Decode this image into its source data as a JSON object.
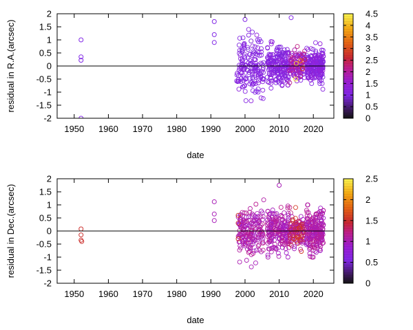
{
  "chart_data": [
    {
      "type": "scatter",
      "xlabel": "date",
      "ylabel": "residual in R.A.(arcsec)",
      "xlim": [
        1945,
        2026
      ],
      "ylim": [
        -2,
        2
      ],
      "xticks": [
        "1950",
        "1960",
        "1970",
        "1980",
        "1990",
        "2000",
        "2010",
        "2020"
      ],
      "yticks": [
        "-2",
        "-1.5",
        "-1",
        "-0.5",
        "0",
        "0.5",
        "1",
        "1.5",
        "2"
      ],
      "zero_line": true,
      "grid": false,
      "colorbar": {
        "range": [
          0,
          4.5
        ],
        "ticks": [
          "0",
          "0.5",
          "1",
          "1.5",
          "2",
          "2.5",
          "3",
          "3.5",
          "4",
          "4.5"
        ]
      },
      "highlighted_points": [
        {
          "x": 1952.0,
          "y": 1.0,
          "c": 1.0
        },
        {
          "x": 1952.0,
          "y": 0.35,
          "c": 1.0
        },
        {
          "x": 1952.0,
          "y": 0.22,
          "c": 1.0
        },
        {
          "x": 1952.0,
          "y": -2.0,
          "c": 1.0
        },
        {
          "x": 1991.0,
          "y": 1.7,
          "c": 1.0
        },
        {
          "x": 1991.0,
          "y": 1.2,
          "c": 1.0
        },
        {
          "x": 1991.0,
          "y": 0.9,
          "c": 1.0
        },
        {
          "x": 2000.0,
          "y": 1.78,
          "c": 1.0
        },
        {
          "x": 2013.5,
          "y": 1.85,
          "c": 1.0
        },
        {
          "x": 2014.8,
          "y": -0.5,
          "c": 4.4
        },
        {
          "x": 2015.0,
          "y": 0.1,
          "c": 4.2
        },
        {
          "x": 2016.2,
          "y": 0.2,
          "c": 3.3
        },
        {
          "x": 2016.8,
          "y": -0.1,
          "c": 2.8
        },
        {
          "x": 2017.5,
          "y": 0.25,
          "c": 2.4
        }
      ],
      "clusters": [
        {
          "x_range": [
            1997.5,
            2005.5
          ],
          "y_sd": 0.55,
          "y_max": 1.55,
          "count": 170,
          "c_range": [
            0.9,
            1.3
          ]
        },
        {
          "x_range": [
            2006.5,
            2013
          ],
          "y_sd": 0.35,
          "y_max": 1.3,
          "count": 200,
          "c_range": [
            0.9,
            1.4
          ]
        },
        {
          "x_range": [
            2013,
            2017.5
          ],
          "y_sd": 0.3,
          "y_max": 1.2,
          "count": 120,
          "c_range": [
            1.0,
            2.4
          ]
        },
        {
          "x_range": [
            2018,
            2023
          ],
          "y_sd": 0.32,
          "y_max": 1.6,
          "count": 220,
          "c_range": [
            0.9,
            1.5
          ]
        }
      ]
    },
    {
      "type": "scatter",
      "xlabel": "date",
      "ylabel": "residual in Dec.(arcsec)",
      "xlim": [
        1945,
        2026
      ],
      "ylim": [
        -2,
        2
      ],
      "xticks": [
        "1950",
        "1960",
        "1970",
        "1980",
        "1990",
        "2000",
        "2010",
        "2020"
      ],
      "yticks": [
        "-2",
        "-1.5",
        "-1",
        "-0.5",
        "0",
        "0.5",
        "1",
        "1.5",
        "2"
      ],
      "zero_line": true,
      "grid": false,
      "colorbar": {
        "range": [
          0,
          2.5
        ],
        "ticks": [
          "0",
          "0.5",
          "1",
          "1.5",
          "2",
          "2.5"
        ]
      },
      "highlighted_points": [
        {
          "x": 1952.0,
          "y": 0.08,
          "c": 1.5
        },
        {
          "x": 1952.0,
          "y": -0.15,
          "c": 1.5
        },
        {
          "x": 1952.0,
          "y": -0.35,
          "c": 1.5
        },
        {
          "x": 1952.2,
          "y": -0.4,
          "c": 1.5
        },
        {
          "x": 1991.0,
          "y": 1.12,
          "c": 1.0
        },
        {
          "x": 1991.0,
          "y": 0.65,
          "c": 1.0
        },
        {
          "x": 1991.0,
          "y": 0.4,
          "c": 1.0
        },
        {
          "x": 1998.0,
          "y": 0.6,
          "c": 1.5
        },
        {
          "x": 1998.0,
          "y": 0.3,
          "c": 1.4
        },
        {
          "x": 1998.0,
          "y": -0.3,
          "c": 1.5
        },
        {
          "x": 2010.0,
          "y": 1.75,
          "c": 1.0
        },
        {
          "x": 2016.0,
          "y": 0.1,
          "c": 1.6
        },
        {
          "x": 2017.0,
          "y": -0.05,
          "c": 1.4
        }
      ],
      "clusters": [
        {
          "x_range": [
            1998,
            2005.5
          ],
          "y_sd": 0.5,
          "y_max": 1.55,
          "count": 180,
          "c_range": [
            0.9,
            1.2
          ]
        },
        {
          "x_range": [
            2006.5,
            2013
          ],
          "y_sd": 0.4,
          "y_max": 1.0,
          "count": 200,
          "c_range": [
            0.9,
            1.2
          ]
        },
        {
          "x_range": [
            2013,
            2017.5
          ],
          "y_sd": 0.3,
          "y_max": 0.9,
          "count": 130,
          "c_range": [
            0.9,
            1.6
          ]
        },
        {
          "x_range": [
            2018,
            2023
          ],
          "y_sd": 0.4,
          "y_max": 1.0,
          "count": 230,
          "c_range": [
            0.9,
            1.2
          ]
        }
      ]
    }
  ]
}
